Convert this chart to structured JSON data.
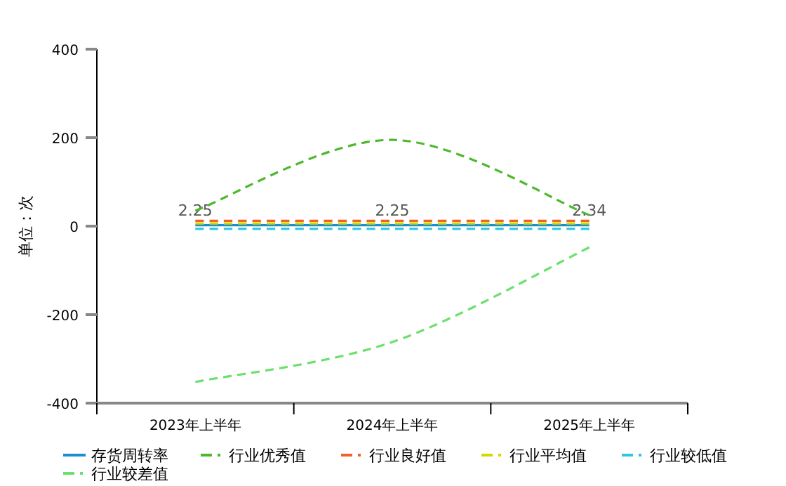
{
  "chart_data": {
    "type": "line",
    "ylabel": "单位：次",
    "categories": [
      "2023年上半年",
      "2024年上半年",
      "2025年上半年"
    ],
    "ylim": [
      -400,
      400
    ],
    "yticks": [
      -400,
      -200,
      0,
      200,
      400
    ],
    "legend": "bottom",
    "marker": "none",
    "series": [
      {
        "name": "存货周转率",
        "color": "#1a8fd0",
        "line_style": "solid",
        "values": [
          2.25,
          2.25,
          2.34
        ],
        "value_labels": [
          "2.25",
          "2.25",
          "2.34"
        ]
      },
      {
        "name": "行业优秀值",
        "color": "#4db82e",
        "line_style": "dashed",
        "values": [
          35,
          195,
          25
        ]
      },
      {
        "name": "行业良好值",
        "color": "#f0622d",
        "line_style": "dashed",
        "values": [
          12,
          12,
          12
        ]
      },
      {
        "name": "行业平均值",
        "color": "#d6d600",
        "line_style": "dashed",
        "values": [
          6,
          6,
          6
        ]
      },
      {
        "name": "行业较低值",
        "color": "#2ec7e0",
        "line_style": "dashed",
        "values": [
          -6,
          -6,
          -6
        ]
      },
      {
        "name": "行业较差值",
        "color": "#6ce06c",
        "line_style": "dashed",
        "values": [
          -352,
          -262,
          -48
        ]
      }
    ]
  }
}
